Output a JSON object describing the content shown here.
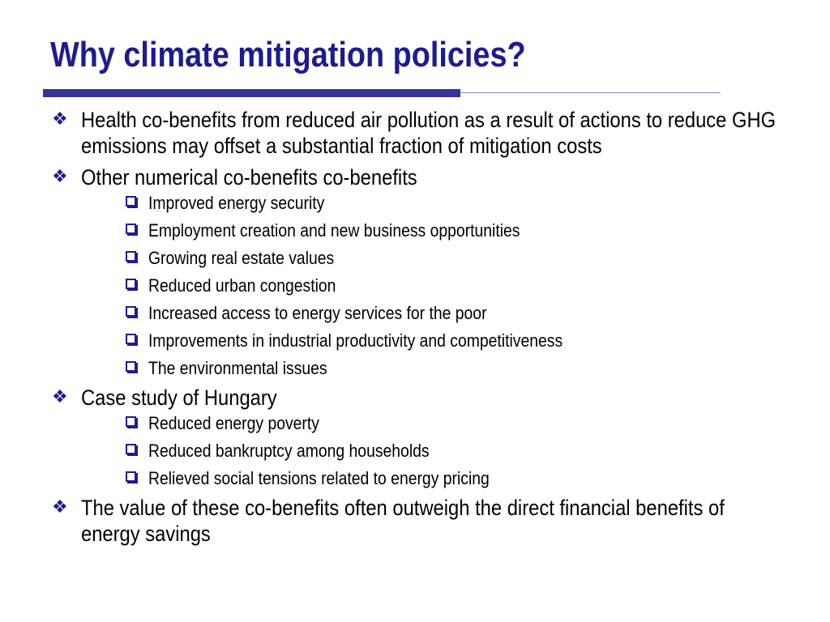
{
  "slide": {
    "title": "Why climate mitigation policies?",
    "accent_color": "#1c1c91",
    "bullets": [
      {
        "text": "Health co-benefits from reduced air pollution as a result of actions to reduce GHG emissions may offset a substantial fraction of mitigation costs",
        "subitems": []
      },
      {
        "text": "Other numerical co-benefits co-benefits",
        "subitems": [
          "Improved energy security",
          "Employment creation and new business opportunities",
          "Growing real estate values",
          "Reduced urban congestion",
          "Increased access to energy services for the poor",
          "Improvements in industrial productivity and competitiveness",
          "The environmental issues"
        ]
      },
      {
        "text": "Case study of Hungary",
        "subitems": [
          "Reduced energy poverty",
          "Reduced bankruptcy among households",
          "Relieved social tensions related to energy pricing"
        ]
      },
      {
        "text": "The value of these co-benefits often outweigh the direct financial benefits of energy savings",
        "subitems": []
      }
    ],
    "bullet_icon": "four-diamond-bullet-icon",
    "subbullet_icon": "hollow-square-bullet-icon"
  }
}
